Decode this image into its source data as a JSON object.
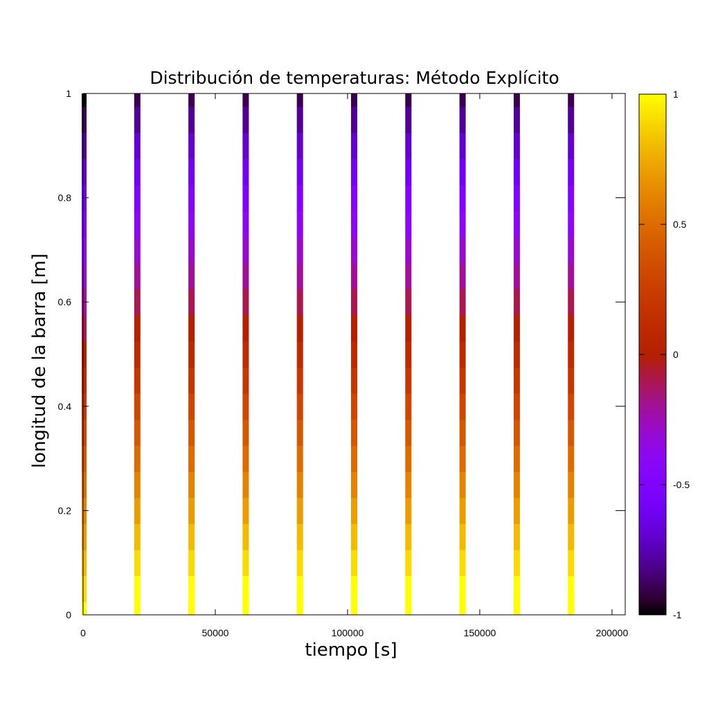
{
  "chart_data": {
    "type": "heatmap",
    "title": "Distribución de temperaturas: Método Explícito",
    "xlabel": "tiempo [s]",
    "ylabel": "longitud de la barra [m]",
    "xlim": [
      0,
      205000
    ],
    "ylim": [
      0,
      1
    ],
    "x_ticks": [
      "0",
      "50000",
      "100000",
      "150000",
      "200000"
    ],
    "x_tick_values": [
      0,
      50000,
      100000,
      150000,
      200000
    ],
    "y_ticks": [
      "0",
      "0.2",
      "0.4",
      "0.6",
      "0.8",
      "1"
    ],
    "y_tick_values": [
      0,
      0.2,
      0.4,
      0.6,
      0.8,
      1
    ],
    "grid": false,
    "palette": "gnuplot rgbformulae 7,5,15",
    "colorbar": {
      "range": [
        -1,
        1
      ],
      "ticks": [
        "-1",
        "-0.5",
        "0",
        "0.5",
        "1"
      ],
      "tick_values": [
        -1,
        -0.5,
        0,
        0.5,
        1
      ]
    },
    "time_samples": [
      0,
      20500,
      41000,
      61500,
      82000,
      102500,
      123000,
      143500,
      164000,
      184500
    ],
    "position_samples": [
      0,
      0.05,
      0.1,
      0.15,
      0.2,
      0.25,
      0.3,
      0.35,
      0.4,
      0.45,
      0.5,
      0.55,
      0.6,
      0.65,
      0.7,
      0.75,
      0.8,
      0.85,
      0.9,
      0.95,
      1
    ],
    "temperature_profile": [
      1,
      1,
      0.9,
      0.8,
      0.7,
      0.6,
      0.5,
      0.4,
      0.3,
      0.2,
      0.1,
      0,
      -0.1,
      -0.2,
      -0.3,
      -0.4,
      -0.5,
      -0.6,
      -0.7,
      -0.8,
      -0.9
    ],
    "first_column_profile": [
      1,
      0.9,
      0.8,
      0.7,
      0.6,
      0.5,
      0.4,
      0.3,
      0.2,
      0.1,
      0,
      -0.1,
      -0.2,
      -0.3,
      -0.4,
      -0.5,
      -0.6,
      -0.7,
      -0.8,
      -0.9,
      -1
    ]
  }
}
